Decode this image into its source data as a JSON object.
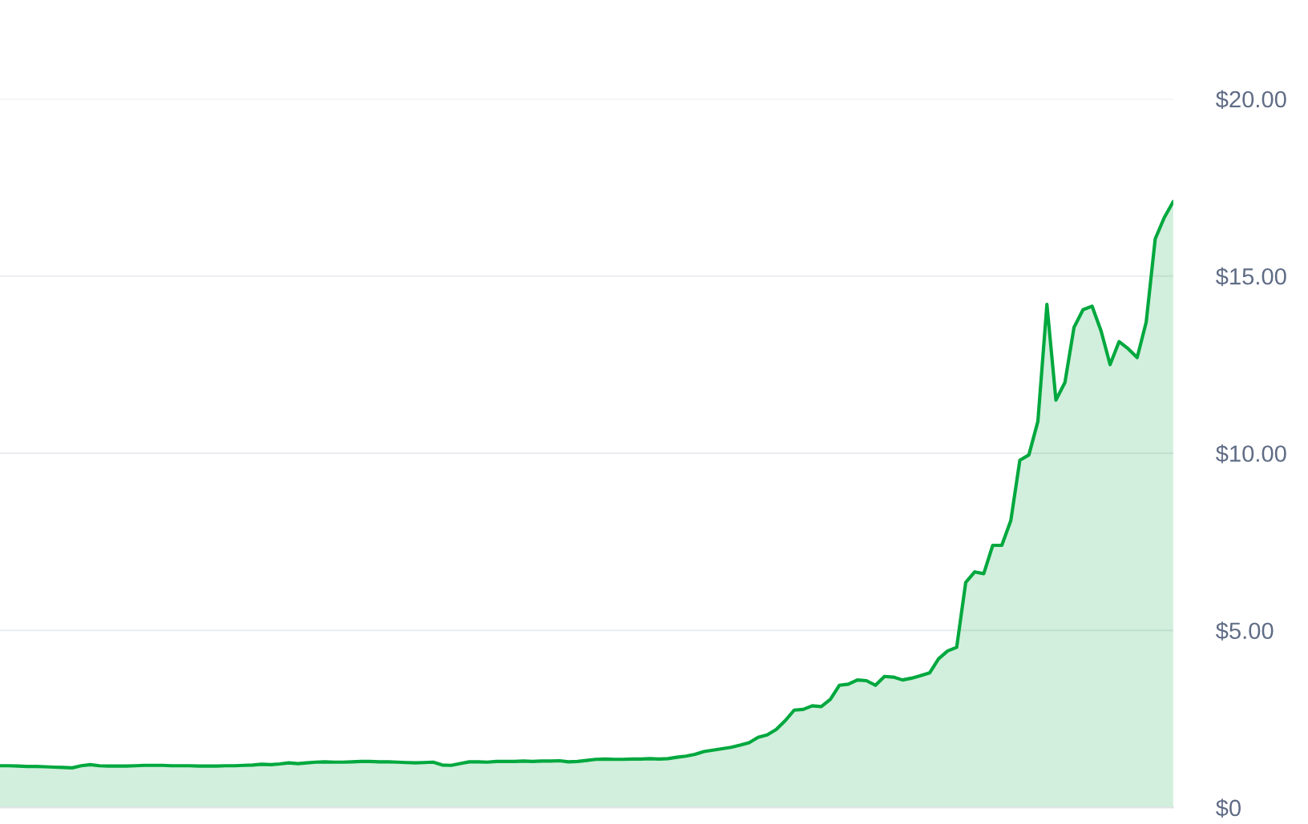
{
  "chart_data": {
    "type": "area",
    "categories": [
      null,
      null,
      null,
      null,
      null,
      null,
      null,
      null,
      null,
      null,
      null,
      null,
      null,
      null,
      null,
      null,
      null,
      null,
      null,
      null,
      null,
      null,
      null,
      null,
      null,
      null,
      null,
      null,
      null,
      null,
      null,
      null,
      null,
      null,
      null,
      null,
      null,
      null,
      null,
      null,
      null,
      null,
      null,
      null,
      null,
      null,
      null,
      null,
      null,
      null,
      null,
      null,
      null,
      null,
      null,
      null,
      null,
      null,
      null,
      null,
      null,
      null,
      null,
      null,
      null,
      null,
      null,
      null,
      null,
      null,
      null,
      null,
      null,
      null,
      null,
      null,
      null,
      null,
      null,
      null,
      null,
      null,
      null,
      null,
      null,
      null,
      null,
      null,
      null,
      null,
      null,
      null,
      null,
      null,
      null,
      null,
      null,
      null,
      null,
      null,
      null,
      null,
      null,
      null,
      null,
      null,
      null,
      null,
      null,
      null,
      null,
      null,
      null,
      null,
      null,
      null,
      null,
      null,
      null,
      null,
      null,
      null,
      null,
      null,
      null,
      null,
      null,
      null,
      null,
      null,
      null
    ],
    "series": [
      {
        "color": "#00a83e",
        "values": [
          1.18,
          1.18,
          1.17,
          1.16,
          1.16,
          1.15,
          1.14,
          1.13,
          1.12,
          1.18,
          1.21,
          1.18,
          1.17,
          1.17,
          1.17,
          1.18,
          1.19,
          1.19,
          1.19,
          1.18,
          1.18,
          1.18,
          1.17,
          1.17,
          1.17,
          1.18,
          1.18,
          1.19,
          1.2,
          1.22,
          1.21,
          1.23,
          1.26,
          1.24,
          1.26,
          1.28,
          1.29,
          1.28,
          1.28,
          1.29,
          1.3,
          1.3,
          1.29,
          1.29,
          1.28,
          1.27,
          1.26,
          1.27,
          1.28,
          1.2,
          1.19,
          1.24,
          1.29,
          1.29,
          1.28,
          1.3,
          1.3,
          1.3,
          1.31,
          1.3,
          1.31,
          1.31,
          1.32,
          1.29,
          1.3,
          1.33,
          1.36,
          1.37,
          1.36,
          1.36,
          1.37,
          1.37,
          1.38,
          1.37,
          1.38,
          1.42,
          1.45,
          1.5,
          1.58,
          1.62,
          1.66,
          1.7,
          1.76,
          1.83,
          1.98,
          2.05,
          2.2,
          2.45,
          2.75,
          2.77,
          2.87,
          2.85,
          3.05,
          3.45,
          3.48,
          3.6,
          3.58,
          3.45,
          3.7,
          3.68,
          3.6,
          3.65,
          3.72,
          3.8,
          4.2,
          4.42,
          4.52,
          6.35,
          6.65,
          6.6,
          7.4,
          7.4,
          8.1,
          9.8,
          9.95,
          10.9,
          14.2,
          11.5,
          12.0,
          13.55,
          14.05,
          14.15,
          13.45,
          12.5,
          13.15,
          12.95,
          12.7,
          13.7,
          16.05,
          16.65,
          17.1
        ]
      }
    ],
    "ylim": [
      0,
      20
    ],
    "yticks": [
      {
        "value": 0,
        "label": "$0"
      },
      {
        "value": 5,
        "label": "$5.00"
      },
      {
        "value": 10,
        "label": "$10.00"
      },
      {
        "value": 15,
        "label": "$15.00"
      },
      {
        "value": 20,
        "label": "$20.00"
      }
    ],
    "grid": "y",
    "tick_labels": "y"
  }
}
